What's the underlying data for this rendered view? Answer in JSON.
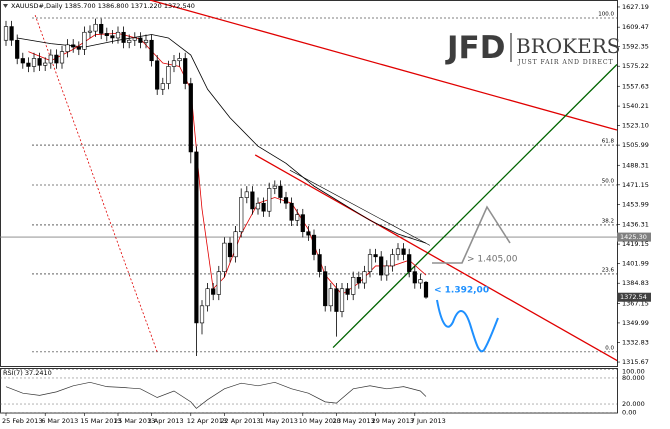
{
  "chart_data": {
    "type": "candlestick",
    "title": "XAUUSD#,Daily",
    "header_ohlc": [
      {
        "value": 1385.7,
        "label": "1385.700"
      },
      {
        "value": 1386.8,
        "label": "1386.800"
      },
      {
        "value": 1371.22,
        "label": "1371.220"
      },
      {
        "value": 1372.54,
        "label": "1372.540"
      }
    ],
    "categories": [
      "25 Feb 2013",
      null,
      null,
      null,
      null,
      null,
      null,
      "6 Mar 2013",
      null,
      null,
      null,
      null,
      null,
      null,
      "15 Mar 2013",
      null,
      null,
      null,
      null,
      null,
      "25 Mar 2013",
      null,
      null,
      null,
      null,
      null,
      "3 Apr 2013",
      null,
      null,
      null,
      null,
      null,
      null,
      "12 Apr 2013",
      null,
      null,
      null,
      null,
      null,
      "22 Apr 2013",
      null,
      null,
      null,
      null,
      null,
      null,
      "1 May 2013",
      null,
      null,
      null,
      null,
      null,
      null,
      "10 May 2013",
      null,
      null,
      null,
      null,
      null,
      "20 May 2013",
      null,
      null,
      null,
      null,
      null,
      null,
      "29 May 2013",
      null,
      null,
      null,
      null,
      null,
      null,
      "7 Jun 2013",
      null,
      null
    ],
    "open": [
      1598,
      1610,
      1598,
      1582,
      1578,
      1575,
      1582,
      1576,
      1578,
      1585,
      1578,
      1588,
      1594,
      1592,
      1590,
      1605,
      1606,
      1612,
      1604,
      1602,
      1600,
      1605,
      1596,
      1598,
      1600,
      1596,
      1598,
      1580,
      1555,
      1560,
      1575,
      1580,
      1582,
      1560,
      1500,
      1350,
      1365,
      1380,
      1375,
      1395,
      1420,
      1408,
      1430,
      1460,
      1465,
      1450,
      1455,
      1448,
      1468,
      1470,
      1460,
      1455,
      1440,
      1445,
      1430,
      1427,
      1410,
      1395,
      1365,
      1380,
      1360,
      1380,
      1375,
      1390,
      1385,
      1395,
      1410,
      1408,
      1392,
      1400,
      1410,
      1415,
      1410,
      1395,
      1385,
      1385.7
    ],
    "high": [
      1615,
      1615,
      1603,
      1587,
      1583,
      1587,
      1587,
      1583,
      1590,
      1590,
      1593,
      1599,
      1599,
      1597,
      1610,
      1611,
      1617,
      1617,
      1609,
      1607,
      1610,
      1610,
      1603,
      1605,
      1605,
      1603,
      1603,
      1585,
      1565,
      1580,
      1585,
      1587,
      1587,
      1565,
      1505,
      1370,
      1385,
      1385,
      1400,
      1425,
      1425,
      1435,
      1468,
      1470,
      1470,
      1460,
      1460,
      1473,
      1475,
      1475,
      1465,
      1460,
      1450,
      1450,
      1435,
      1432,
      1415,
      1400,
      1385,
      1385,
      1385,
      1385,
      1395,
      1395,
      1400,
      1415,
      1415,
      1413,
      1405,
      1415,
      1420,
      1420,
      1415,
      1400,
      1393,
      1386.8
    ],
    "low": [
      1593,
      1593,
      1577,
      1573,
      1570,
      1570,
      1571,
      1571,
      1573,
      1573,
      1573,
      1583,
      1587,
      1585,
      1585,
      1600,
      1601,
      1599,
      1597,
      1595,
      1595,
      1591,
      1591,
      1593,
      1591,
      1591,
      1575,
      1550,
      1550,
      1555,
      1570,
      1575,
      1555,
      1490,
      1321,
      1340,
      1360,
      1370,
      1370,
      1390,
      1403,
      1403,
      1425,
      1455,
      1445,
      1445,
      1443,
      1443,
      1463,
      1455,
      1450,
      1435,
      1435,
      1425,
      1422,
      1405,
      1390,
      1360,
      1360,
      1338,
      1355,
      1370,
      1370,
      1380,
      1380,
      1390,
      1403,
      1387,
      1387,
      1395,
      1405,
      1405,
      1390,
      1380,
      1380,
      1371.22
    ],
    "close": [
      1610,
      1598,
      1582,
      1578,
      1575,
      1582,
      1576,
      1578,
      1585,
      1578,
      1588,
      1594,
      1592,
      1590,
      1605,
      1606,
      1612,
      1604,
      1602,
      1600,
      1605,
      1596,
      1598,
      1600,
      1596,
      1598,
      1580,
      1555,
      1560,
      1575,
      1580,
      1582,
      1560,
      1500,
      1350,
      1365,
      1380,
      1375,
      1395,
      1420,
      1408,
      1430,
      1460,
      1465,
      1450,
      1455,
      1448,
      1468,
      1470,
      1460,
      1455,
      1440,
      1445,
      1430,
      1427,
      1410,
      1395,
      1365,
      1380,
      1360,
      1380,
      1375,
      1390,
      1385,
      1395,
      1410,
      1408,
      1392,
      1400,
      1410,
      1415,
      1410,
      1395,
      1385,
      1388,
      1372.54
    ],
    "bull_color": "#ffffff",
    "bear_color": "#000000",
    "wick_color": "#000000",
    "ylim": [
      1312.2,
      1633.3
    ],
    "yticks": [
      1627.19,
      1609.47,
      1592.35,
      1575.22,
      1557.63,
      1540.21,
      {
        "value": 1523.1,
        "label": "1523.10"
      },
      1505.99,
      1488.31,
      1471.15,
      1453.99,
      1436.31,
      1419.15,
      1401.99,
      1384.83,
      1367.15,
      1349.99,
      1332.83,
      1315.67
    ],
    "grid": false,
    "last_price": {
      "value": 1372.54,
      "label": "1372.54",
      "color": "#404040"
    },
    "hline": {
      "value": 1425.3,
      "label": "1425.30",
      "color": "#808080"
    },
    "moving_averages": [
      {
        "color": "#000000",
        "x": [
          2,
          8,
          14,
          20,
          26,
          29,
          33,
          36,
          40,
          45,
          50,
          55,
          60,
          65,
          70,
          75
        ],
        "values": [
          1600,
          1595,
          1592,
          1598,
          1603,
          1600,
          1585,
          1555,
          1530,
          1505,
          1490,
          1470,
          1455,
          1440,
          1428,
          1420
        ]
      },
      {
        "color": "#e00000",
        "x": [
          4,
          8,
          12,
          16,
          20,
          24,
          28,
          31,
          33,
          35,
          37,
          39,
          42,
          45,
          48,
          51,
          54,
          57,
          60,
          63,
          66,
          69,
          72,
          75
        ],
        "values": [
          1588,
          1580,
          1590,
          1603,
          1604,
          1599,
          1578,
          1575,
          1555,
          1450,
          1380,
          1390,
          1428,
          1455,
          1460,
          1455,
          1432,
          1392,
          1375,
          1385,
          1400,
          1400,
          1405,
          1392
        ]
      }
    ],
    "fibonacci": {
      "color": "#000000",
      "levels": [
        {
          "label": "100.0",
          "value": 1617.5
        },
        {
          "label": "61.8",
          "value": 1506
        },
        {
          "label": "50.0",
          "value": 1471
        },
        {
          "label": "38.2",
          "value": 1436
        },
        {
          "label": "23.6",
          "value": 1393
        },
        {
          "label": "0.0",
          "value": 1324.6
        }
      ]
    },
    "trendlines": [
      {
        "color": "#e00000",
        "dash": false,
        "x": [
          25.7,
          109.1
        ],
        "values": [
          1633.3,
          1519.2
        ]
      },
      {
        "color": "#e00000",
        "dash": false,
        "x": [
          44.5,
          109.6
        ],
        "values": [
          1497.4,
          1315.7
        ]
      },
      {
        "color": "#006400",
        "dash": false,
        "x": [
          58.4,
          109.1
        ],
        "values": [
          1328.4,
          1576.7
        ]
      },
      {
        "color": "#e00000",
        "dash": true,
        "x": [
          5.2,
          27
        ],
        "values": [
          1620,
          1324.6
        ]
      },
      {
        "color": "#000000",
        "dash": false,
        "x": [
          50.7,
          75.7
        ],
        "values": [
          1484,
          1418
        ]
      }
    ],
    "annotations": [
      {
        "text": "> 1.405,00",
        "color": "#707070"
      },
      {
        "text": "< 1.392,00",
        "color": "#1e90ff"
      }
    ],
    "indicator": {
      "name": "RSI(7)",
      "last": {
        "value": 37.241,
        "label": "37.2410"
      },
      "color": "#333333",
      "x": [
        0,
        3,
        6,
        9,
        12,
        15,
        18,
        21,
        24,
        27,
        30,
        33,
        34,
        36,
        39,
        42,
        45,
        48,
        51,
        54,
        57,
        59,
        62,
        65,
        68,
        71,
        74,
        75
      ],
      "values": [
        60,
        45,
        40,
        48,
        62,
        70,
        60,
        58,
        55,
        35,
        50,
        25,
        10,
        30,
        55,
        68,
        62,
        70,
        55,
        45,
        25,
        22,
        55,
        62,
        55,
        60,
        50,
        37.241
      ],
      "ylim": [
        0,
        100
      ],
      "yticks": [
        {
          "value": 100,
          "label": "100.00"
        },
        {
          "value": 80,
          "label": "80.000"
        },
        {
          "value": 20,
          "label": "20.000"
        },
        {
          "value": 0,
          "label": "0.00"
        }
      ]
    }
  },
  "logo": {
    "name": "JFD",
    "brand": "BROKERS",
    "tagline": "JUST FAIR AND DIRECT"
  }
}
